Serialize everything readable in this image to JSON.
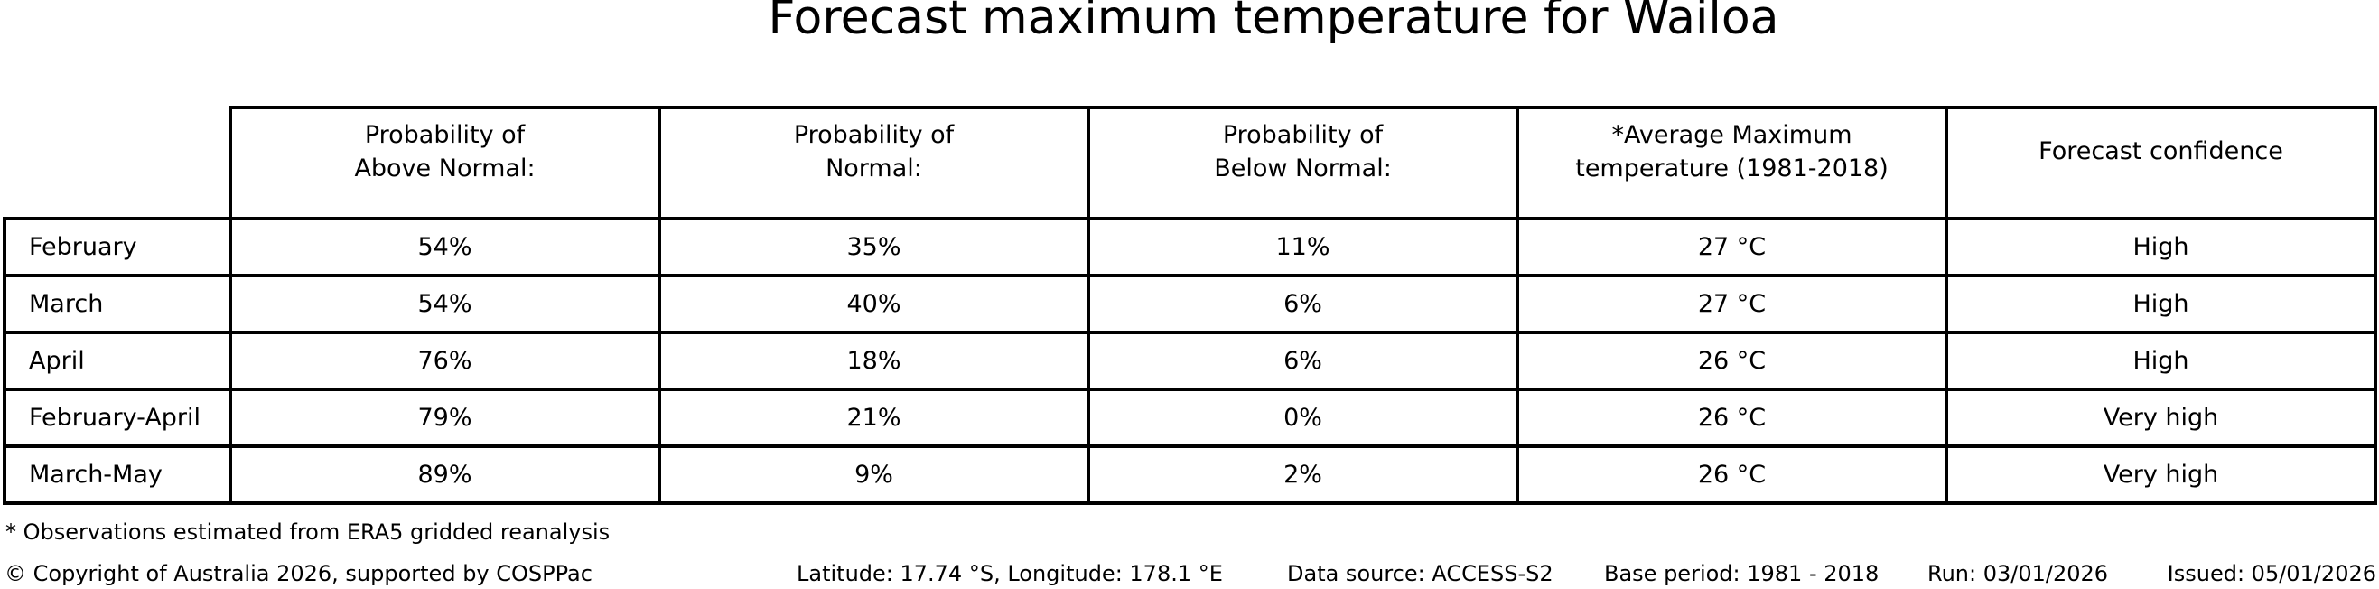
{
  "chart_data": {
    "type": "table",
    "title": "Forecast maximum temperature for Wailoa",
    "column_headers": [
      "Probability of\nAbove Normal:",
      "Probability of\nNormal:",
      "Probability of\nBelow Normal:",
      "*Average Maximum\ntemperature (1981-2018)",
      "Forecast confidence"
    ],
    "row_labels": [
      "February",
      "March",
      "April",
      "February-April",
      "March-May"
    ],
    "cells": [
      [
        "54%",
        "35%",
        "11%",
        "27 °C",
        "High"
      ],
      [
        "54%",
        "40%",
        "6%",
        "27 °C",
        "High"
      ],
      [
        "76%",
        "18%",
        "6%",
        "26 °C",
        "High"
      ],
      [
        "79%",
        "21%",
        "0%",
        "26 °C",
        "Very high"
      ],
      [
        "89%",
        "9%",
        "2%",
        "26 °C",
        "Very high"
      ]
    ],
    "layout_hints": {
      "grid": "all-borders",
      "corner_cell_empty": true,
      "border_color": "#000000"
    }
  },
  "footnote": "* Observations estimated from ERA5 gridded reanalysis",
  "footer": {
    "copyright": "© Copyright of Australia 2026, supported by COSPPac",
    "location": "Latitude: 17.74 °S, Longitude: 178.1 °E",
    "data_source": "Data source: ACCESS-S2",
    "base_period": "Base period: 1981 - 2018",
    "run": "Run: 03/01/2026",
    "issued": "Issued: 05/01/2026"
  }
}
